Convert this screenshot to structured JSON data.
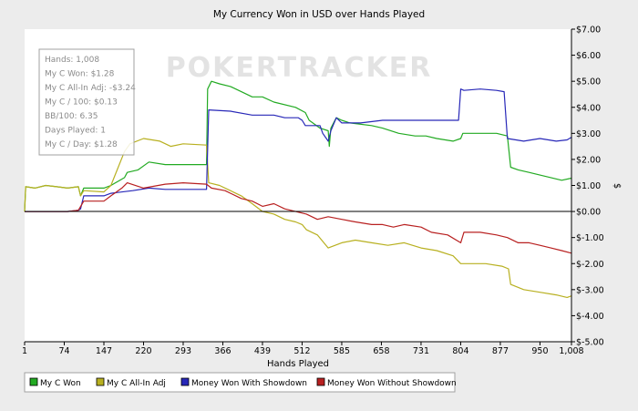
{
  "chart_data": {
    "type": "line",
    "title": "My Currency Won in USD over Hands Played",
    "xlabel": "Hands Played",
    "ylabel": "$",
    "xlim": [
      1,
      1008
    ],
    "ylim": [
      -5,
      7
    ],
    "x_ticks": [
      1,
      74,
      147,
      220,
      293,
      366,
      439,
      512,
      585,
      658,
      731,
      804,
      877,
      950,
      1008
    ],
    "x_tick_labels": [
      "1",
      "74",
      "147",
      "220",
      "293",
      "366",
      "439",
      "512",
      "585",
      "658",
      "731",
      "804",
      "877",
      "950",
      "1,008"
    ],
    "y_ticks": [
      7,
      6,
      5,
      4,
      3,
      2,
      1,
      0,
      -1,
      -2,
      -3,
      -4,
      -5
    ],
    "y_tick_labels": [
      "$7.00",
      "$6.00",
      "$5.00",
      "$4.00",
      "$3.00",
      "$2.00",
      "$1.00",
      "$0.00",
      "$-1.00",
      "$-2.00",
      "$-3.00",
      "$-4.00",
      "$-5.00"
    ],
    "y_axis_side": "right",
    "grid": false,
    "legend_position": "bottom",
    "watermark": "POKERTRACKER",
    "stats_box": [
      "Hands: 1,008",
      "My C Won: $1.28",
      "My C All-In Adj: -$3.24",
      "My C / 100: $0.13",
      "BB/100: 6.35",
      "Days Played: 1",
      "My C / Day: $1.28"
    ],
    "series": [
      {
        "name": "My C Won",
        "color": "#22aa22",
        "points": [
          [
            1,
            0
          ],
          [
            3,
            0.95
          ],
          [
            20,
            0.9
          ],
          [
            40,
            1.0
          ],
          [
            60,
            0.95
          ],
          [
            80,
            0.9
          ],
          [
            100,
            0.95
          ],
          [
            104,
            0.6
          ],
          [
            110,
            0.9
          ],
          [
            147,
            0.9
          ],
          [
            160,
            1.0
          ],
          [
            185,
            1.3
          ],
          [
            190,
            1.5
          ],
          [
            210,
            1.6
          ],
          [
            230,
            1.9
          ],
          [
            260,
            1.8
          ],
          [
            293,
            1.8
          ],
          [
            336,
            1.8
          ],
          [
            338,
            4.7
          ],
          [
            345,
            5.0
          ],
          [
            360,
            4.9
          ],
          [
            380,
            4.8
          ],
          [
            400,
            4.6
          ],
          [
            420,
            4.4
          ],
          [
            439,
            4.4
          ],
          [
            460,
            4.2
          ],
          [
            500,
            4.0
          ],
          [
            518,
            3.8
          ],
          [
            525,
            3.5
          ],
          [
            545,
            3.2
          ],
          [
            560,
            3.1
          ],
          [
            562,
            2.5
          ],
          [
            565,
            3.2
          ],
          [
            575,
            3.6
          ],
          [
            585,
            3.5
          ],
          [
            600,
            3.4
          ],
          [
            640,
            3.3
          ],
          [
            660,
            3.2
          ],
          [
            690,
            3.0
          ],
          [
            720,
            2.9
          ],
          [
            740,
            2.9
          ],
          [
            760,
            2.8
          ],
          [
            790,
            2.7
          ],
          [
            804,
            2.8
          ],
          [
            808,
            3.0
          ],
          [
            840,
            3.0
          ],
          [
            870,
            3.0
          ],
          [
            890,
            2.9
          ],
          [
            896,
            1.7
          ],
          [
            910,
            1.6
          ],
          [
            930,
            1.5
          ],
          [
            950,
            1.4
          ],
          [
            970,
            1.3
          ],
          [
            990,
            1.2
          ],
          [
            1008,
            1.28
          ]
        ]
      },
      {
        "name": "My C All-In Adj",
        "color": "#b8b020",
        "points": [
          [
            1,
            0
          ],
          [
            3,
            0.95
          ],
          [
            20,
            0.9
          ],
          [
            40,
            1.0
          ],
          [
            60,
            0.95
          ],
          [
            80,
            0.9
          ],
          [
            100,
            0.95
          ],
          [
            104,
            0.6
          ],
          [
            110,
            0.8
          ],
          [
            147,
            0.75
          ],
          [
            160,
            1.0
          ],
          [
            185,
            2.3
          ],
          [
            195,
            2.6
          ],
          [
            220,
            2.8
          ],
          [
            250,
            2.7
          ],
          [
            270,
            2.5
          ],
          [
            293,
            2.6
          ],
          [
            336,
            2.55
          ],
          [
            340,
            1.1
          ],
          [
            360,
            1.0
          ],
          [
            380,
            0.8
          ],
          [
            400,
            0.6
          ],
          [
            420,
            0.3
          ],
          [
            439,
            0.0
          ],
          [
            460,
            -0.1
          ],
          [
            480,
            -0.3
          ],
          [
            500,
            -0.4
          ],
          [
            512,
            -0.5
          ],
          [
            520,
            -0.7
          ],
          [
            540,
            -0.9
          ],
          [
            560,
            -1.4
          ],
          [
            585,
            -1.2
          ],
          [
            610,
            -1.1
          ],
          [
            640,
            -1.2
          ],
          [
            670,
            -1.3
          ],
          [
            700,
            -1.2
          ],
          [
            731,
            -1.4
          ],
          [
            760,
            -1.5
          ],
          [
            790,
            -1.7
          ],
          [
            804,
            -2.0
          ],
          [
            820,
            -2.0
          ],
          [
            850,
            -2.0
          ],
          [
            880,
            -2.1
          ],
          [
            892,
            -2.2
          ],
          [
            896,
            -2.8
          ],
          [
            920,
            -3.0
          ],
          [
            950,
            -3.1
          ],
          [
            980,
            -3.2
          ],
          [
            1000,
            -3.3
          ],
          [
            1008,
            -3.24
          ]
        ]
      },
      {
        "name": "Money Won With Showdown",
        "color": "#2828b8",
        "points": [
          [
            1,
            0
          ],
          [
            80,
            0
          ],
          [
            100,
            0.05
          ],
          [
            104,
            0.1
          ],
          [
            110,
            0.6
          ],
          [
            147,
            0.6
          ],
          [
            160,
            0.7
          ],
          [
            200,
            0.8
          ],
          [
            230,
            0.9
          ],
          [
            260,
            0.85
          ],
          [
            293,
            0.85
          ],
          [
            336,
            0.85
          ],
          [
            340,
            3.9
          ],
          [
            380,
            3.85
          ],
          [
            420,
            3.7
          ],
          [
            439,
            3.7
          ],
          [
            460,
            3.7
          ],
          [
            480,
            3.6
          ],
          [
            505,
            3.6
          ],
          [
            512,
            3.5
          ],
          [
            518,
            3.3
          ],
          [
            545,
            3.3
          ],
          [
            550,
            3.0
          ],
          [
            560,
            2.7
          ],
          [
            565,
            3.1
          ],
          [
            575,
            3.6
          ],
          [
            585,
            3.4
          ],
          [
            620,
            3.4
          ],
          [
            660,
            3.5
          ],
          [
            700,
            3.5
          ],
          [
            731,
            3.5
          ],
          [
            780,
            3.5
          ],
          [
            800,
            3.5
          ],
          [
            804,
            4.7
          ],
          [
            810,
            4.65
          ],
          [
            840,
            4.7
          ],
          [
            870,
            4.65
          ],
          [
            884,
            4.6
          ],
          [
            890,
            2.8
          ],
          [
            920,
            2.7
          ],
          [
            950,
            2.8
          ],
          [
            980,
            2.7
          ],
          [
            1000,
            2.75
          ],
          [
            1008,
            2.85
          ]
        ]
      },
      {
        "name": "Money Won Without Showdown",
        "color": "#b82020",
        "points": [
          [
            1,
            0
          ],
          [
            80,
            0
          ],
          [
            100,
            0.05
          ],
          [
            110,
            0.4
          ],
          [
            147,
            0.4
          ],
          [
            160,
            0.6
          ],
          [
            180,
            0.9
          ],
          [
            190,
            1.1
          ],
          [
            220,
            0.9
          ],
          [
            260,
            1.05
          ],
          [
            293,
            1.1
          ],
          [
            336,
            1.05
          ],
          [
            345,
            0.9
          ],
          [
            370,
            0.8
          ],
          [
            400,
            0.5
          ],
          [
            420,
            0.4
          ],
          [
            439,
            0.2
          ],
          [
            460,
            0.3
          ],
          [
            480,
            0.1
          ],
          [
            500,
            0.0
          ],
          [
            520,
            -0.1
          ],
          [
            540,
            -0.3
          ],
          [
            560,
            -0.2
          ],
          [
            585,
            -0.3
          ],
          [
            610,
            -0.4
          ],
          [
            640,
            -0.5
          ],
          [
            660,
            -0.5
          ],
          [
            680,
            -0.6
          ],
          [
            700,
            -0.5
          ],
          [
            731,
            -0.6
          ],
          [
            750,
            -0.8
          ],
          [
            780,
            -0.9
          ],
          [
            804,
            -1.2
          ],
          [
            810,
            -0.8
          ],
          [
            840,
            -0.8
          ],
          [
            870,
            -0.9
          ],
          [
            890,
            -1.0
          ],
          [
            910,
            -1.2
          ],
          [
            930,
            -1.2
          ],
          [
            950,
            -1.3
          ],
          [
            970,
            -1.4
          ],
          [
            990,
            -1.5
          ],
          [
            1008,
            -1.6
          ]
        ]
      }
    ]
  }
}
